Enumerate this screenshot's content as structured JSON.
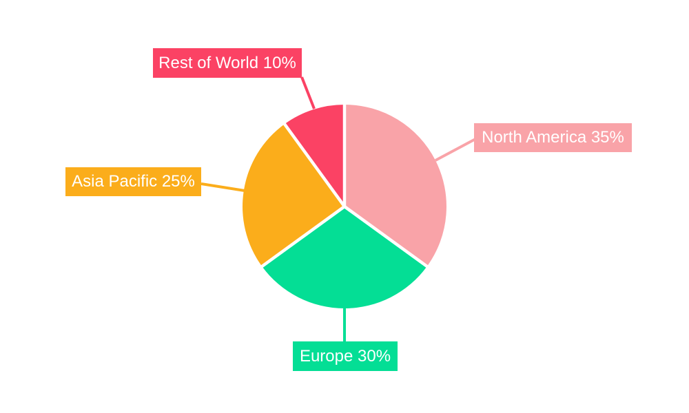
{
  "chart_data": {
    "type": "pie",
    "title": "",
    "categories": [
      "North America",
      "Europe",
      "Asia Pacific",
      "Rest of World"
    ],
    "values": [
      35,
      30,
      25,
      10
    ],
    "unit": "%",
    "start_angle_deg": 0,
    "direction": "clockwise",
    "legend_position": "callout-labels",
    "background_color": "#FFFFFF",
    "label_text_color": "#FFFFFF",
    "separator_color": "#FFFFFF",
    "segments": [
      {
        "label": "North America",
        "value": 35,
        "callout": "North America 35%",
        "color": "#F9A3A8"
      },
      {
        "label": "Europe",
        "value": 30,
        "callout": "Europe 30%",
        "color": "#04DE95"
      },
      {
        "label": "Asia Pacific",
        "value": 25,
        "callout": "Asia Pacific 25%",
        "color": "#FBAD1B"
      },
      {
        "label": "Rest of World",
        "value": 10,
        "callout": "Rest of World 10%",
        "color": "#FB4264"
      }
    ]
  }
}
